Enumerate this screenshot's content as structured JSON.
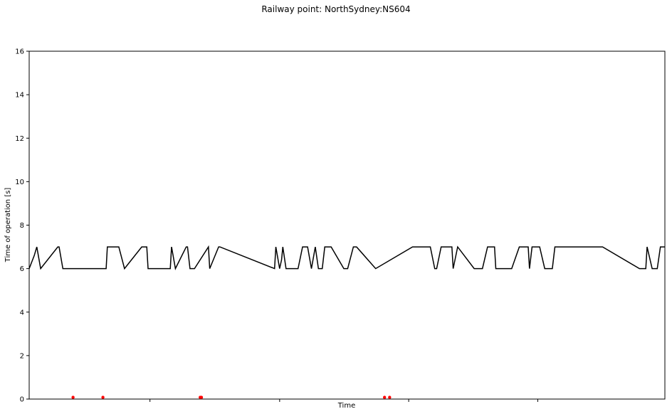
{
  "chart_data": {
    "type": "line",
    "title": "Railway point: NorthSydney:NS604",
    "xlabel": "Time",
    "ylabel": "Time of operation [s]",
    "ylim": [
      0,
      16
    ],
    "xlim": [
      0,
      100
    ],
    "yticks": [
      0,
      2,
      4,
      6,
      8,
      10,
      12,
      14,
      16
    ],
    "xticks": [
      19,
      39.4,
      59.7,
      80
    ],
    "grid": false,
    "legend": "none",
    "series": [
      {
        "color": "#000000",
        "style": "line",
        "x": [
          0,
          0.8,
          1.2,
          1.8,
          4.5,
          4.7,
          5.3,
          12.1,
          12.3,
          14.1,
          15.0,
          17.7,
          18.5,
          18.7,
          22.2,
          22.4,
          23.0,
          24.7,
          24.9,
          25.3,
          26.0,
          28.2,
          28.4,
          29.8,
          30.0,
          38.6,
          38.8,
          39.4,
          39.7,
          39.9,
          40.4,
          42.3,
          43.0,
          43.8,
          44.4,
          45.0,
          45.5,
          46.1,
          46.5,
          47.5,
          49.5,
          50.1,
          51.0,
          51.5,
          54.5,
          60.3,
          63.1,
          63.8,
          64.1,
          64.8,
          66.5,
          66.7,
          67.4,
          70.0,
          71.3,
          72.1,
          73.2,
          73.4,
          75.9,
          77.1,
          78.5,
          78.7,
          79.1,
          80.3,
          81.1,
          82.3,
          82.7,
          85.9,
          90.2,
          96.0,
          97.0,
          97.2,
          98.0,
          98.8,
          99.3,
          100
        ],
        "y": [
          6,
          6.6,
          7,
          6,
          7,
          7,
          6,
          6,
          7,
          7,
          6,
          7,
          7,
          6,
          6,
          7,
          6,
          7,
          7,
          6,
          6,
          7,
          6,
          7,
          7,
          6,
          7,
          6,
          6.4,
          7,
          6,
          6,
          7,
          7,
          6,
          7,
          6,
          6,
          7,
          7,
          6,
          6,
          7,
          7,
          6,
          7,
          7,
          6,
          6,
          7,
          7,
          6,
          7,
          6,
          6,
          7,
          7,
          6,
          6,
          7,
          7,
          6,
          7,
          7,
          6,
          6,
          7,
          7,
          7,
          6,
          6,
          7,
          6,
          6,
          7,
          7
        ]
      },
      {
        "color": "#ff0000",
        "style": "scatter",
        "x": [
          6.9,
          11.6,
          26.9,
          27.1,
          55.9,
          56.7
        ],
        "y": [
          0.08,
          0.08,
          0.08,
          0.08,
          0.08,
          0.08
        ]
      }
    ]
  }
}
